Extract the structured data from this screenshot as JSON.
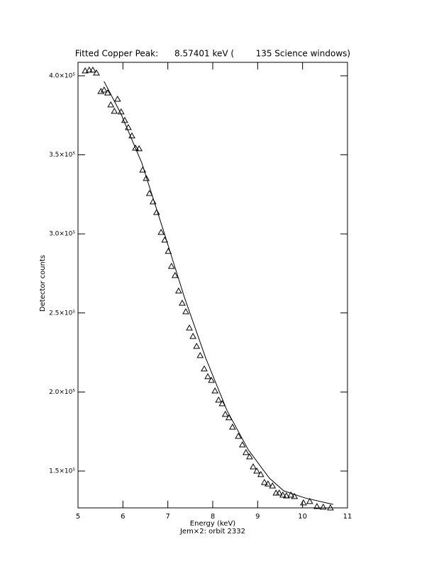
{
  "chart_data": {
    "type": "scatter",
    "title": "Fitted Copper Peak:      8.57401 keV (        135 Science windows)",
    "xlabel": "Energy (keV)",
    "ylabel": "Detector counts",
    "subtitle": "Jem×2: orbit 2332",
    "xlim": [
      5,
      11
    ],
    "xticks": [
      5,
      6,
      7,
      8,
      9,
      10,
      11
    ],
    "ylim": [
      126700,
      408500
    ],
    "yticks": [
      {
        "value": 150000,
        "label": "1.5×10⁵"
      },
      {
        "value": 200000,
        "label": "2.0×10⁵"
      },
      {
        "value": 250000,
        "label": "2.5×10⁵"
      },
      {
        "value": 300000,
        "label": "3.0×10⁵"
      },
      {
        "value": 350000,
        "label": "3.5×10⁵"
      },
      {
        "value": 400000,
        "label": "4.0×10⁵"
      }
    ],
    "color": "#000000",
    "x": [
      5.16,
      5.25,
      5.33,
      5.41,
      5.51,
      5.58,
      5.66,
      5.73,
      5.81,
      5.88,
      5.96,
      6.04,
      6.12,
      6.2,
      6.28,
      6.36,
      6.44,
      6.52,
      6.59,
      6.67,
      6.75,
      6.85,
      6.93,
      7.01,
      7.08,
      7.16,
      7.24,
      7.32,
      7.4,
      7.48,
      7.56,
      7.64,
      7.72,
      7.81,
      7.89,
      7.97,
      8.05,
      8.13,
      8.21,
      8.28,
      8.36,
      8.44,
      8.57,
      8.66,
      8.74,
      8.82,
      8.9,
      8.98,
      9.07,
      9.15,
      9.23,
      9.33,
      9.41,
      9.48,
      9.56,
      9.64,
      9.74,
      9.82,
      10.02,
      10.16,
      10.32,
      10.46,
      10.62
    ],
    "values": [
      403100,
      403600,
      403600,
      401800,
      390100,
      391000,
      389200,
      381600,
      377600,
      385200,
      377200,
      371800,
      367300,
      362000,
      354300,
      353900,
      340400,
      335100,
      325600,
      320300,
      313600,
      301000,
      296100,
      289000,
      279500,
      273700,
      263900,
      256200,
      250800,
      240500,
      235200,
      228900,
      223100,
      214600,
      209700,
      207400,
      200700,
      194900,
      192600,
      185900,
      183700,
      177800,
      172000,
      166600,
      161700,
      159000,
      152700,
      150000,
      147800,
      142800,
      141900,
      140600,
      136100,
      136100,
      134800,
      134300,
      134800,
      133900,
      129900,
      130800,
      127600,
      127200,
      126700
    ],
    "fit": {
      "x": [
        5.58,
        5.95,
        6.42,
        6.9,
        7.37,
        7.84,
        8.32,
        8.79,
        9.26,
        9.58,
        10.05,
        10.68
      ],
      "values": [
        396400,
        376300,
        344900,
        302300,
        259800,
        221700,
        188100,
        163500,
        145500,
        137500,
        133000,
        128900
      ]
    }
  }
}
